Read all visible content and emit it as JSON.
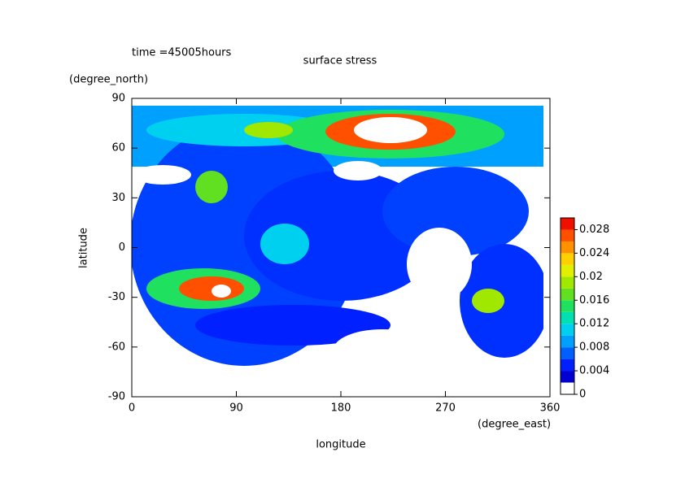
{
  "chart_data": {
    "type": "contour",
    "title": "surface stress",
    "subtitle": "time =45005hours",
    "x_label": "longitude",
    "x_unit": "(degree_east)",
    "y_label": "latitude",
    "y_unit": "(degree_north)",
    "xlim": [
      0,
      360
    ],
    "xticks": [
      0,
      90,
      180,
      270,
      360
    ],
    "ylim": [
      -90,
      90
    ],
    "yticks": [
      -90,
      -60,
      -30,
      0,
      30,
      60,
      90
    ],
    "colorbar": {
      "levels": [
        0,
        0.002,
        0.004,
        0.006,
        0.008,
        0.01,
        0.012,
        0.014,
        0.016,
        0.018,
        0.02,
        0.022,
        0.024,
        0.026,
        0.028,
        0.03
      ],
      "ticks": [
        0,
        0.004,
        0.008,
        0.012,
        0.016,
        0.02,
        0.024,
        0.028
      ],
      "colors": [
        "#ffffff",
        "#0000d0",
        "#0020ff",
        "#0060ff",
        "#00a0ff",
        "#00d0f0",
        "#00e0b0",
        "#20e060",
        "#60e020",
        "#a0e800",
        "#e0f000",
        "#ffd000",
        "#ff9000",
        "#ff5000",
        "#f01000"
      ]
    }
  }
}
